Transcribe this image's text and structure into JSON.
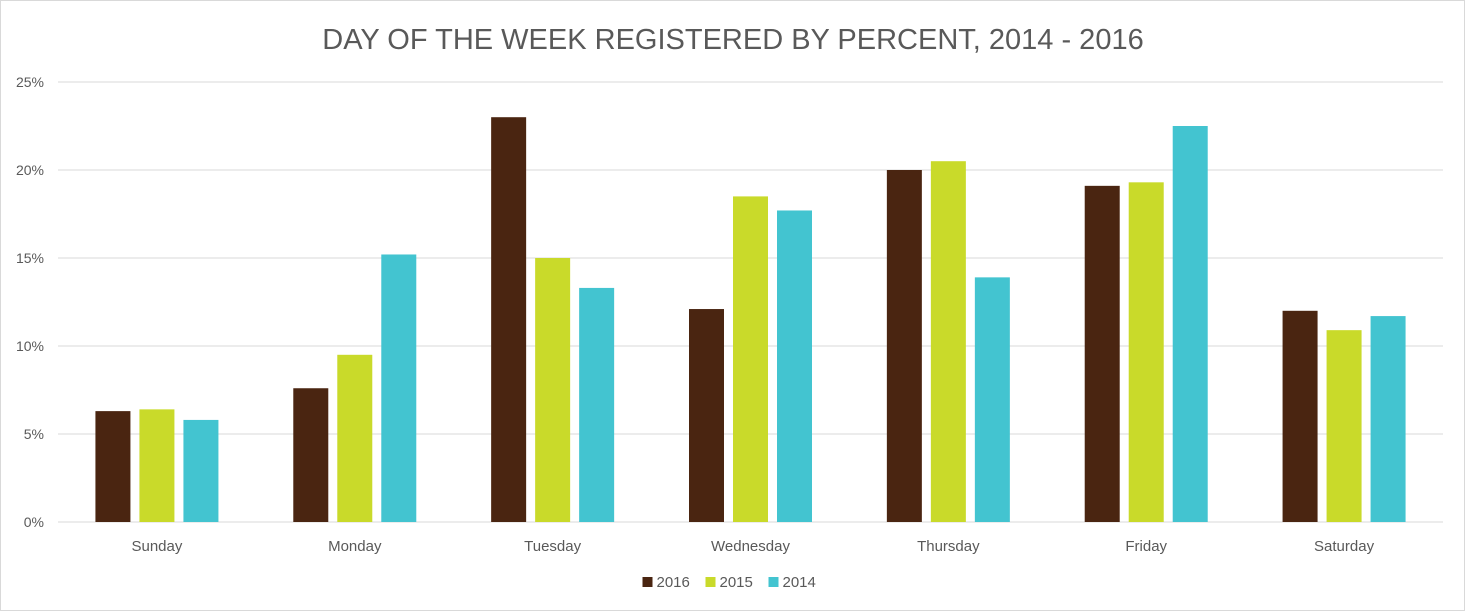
{
  "chart_data": {
    "type": "bar",
    "title": "DAY OF THE WEEK REGISTERED BY PERCENT, 2014 - 2016",
    "xlabel": "",
    "ylabel": "",
    "categories": [
      "Sunday",
      "Monday",
      "Tuesday",
      "Wednesday",
      "Thursday",
      "Friday",
      "Saturday"
    ],
    "series": [
      {
        "name": "2016",
        "color": "#4a2511",
        "values": [
          6.3,
          7.6,
          23.0,
          12.1,
          20.0,
          19.1,
          12.0
        ]
      },
      {
        "name": "2015",
        "color": "#c9da2a",
        "values": [
          6.4,
          9.5,
          15.0,
          18.5,
          20.5,
          19.3,
          10.9
        ]
      },
      {
        "name": "2014",
        "color": "#43c4d0",
        "values": [
          5.8,
          15.2,
          13.3,
          17.7,
          13.9,
          22.5,
          11.7
        ]
      }
    ],
    "ylim": [
      0,
      25
    ],
    "yticks": [
      0,
      5,
      10,
      15,
      20,
      25
    ],
    "ytick_labels": [
      "0%",
      "5%",
      "10%",
      "15%",
      "20%",
      "25%"
    ],
    "grid": true,
    "legend_position": "bottom"
  }
}
